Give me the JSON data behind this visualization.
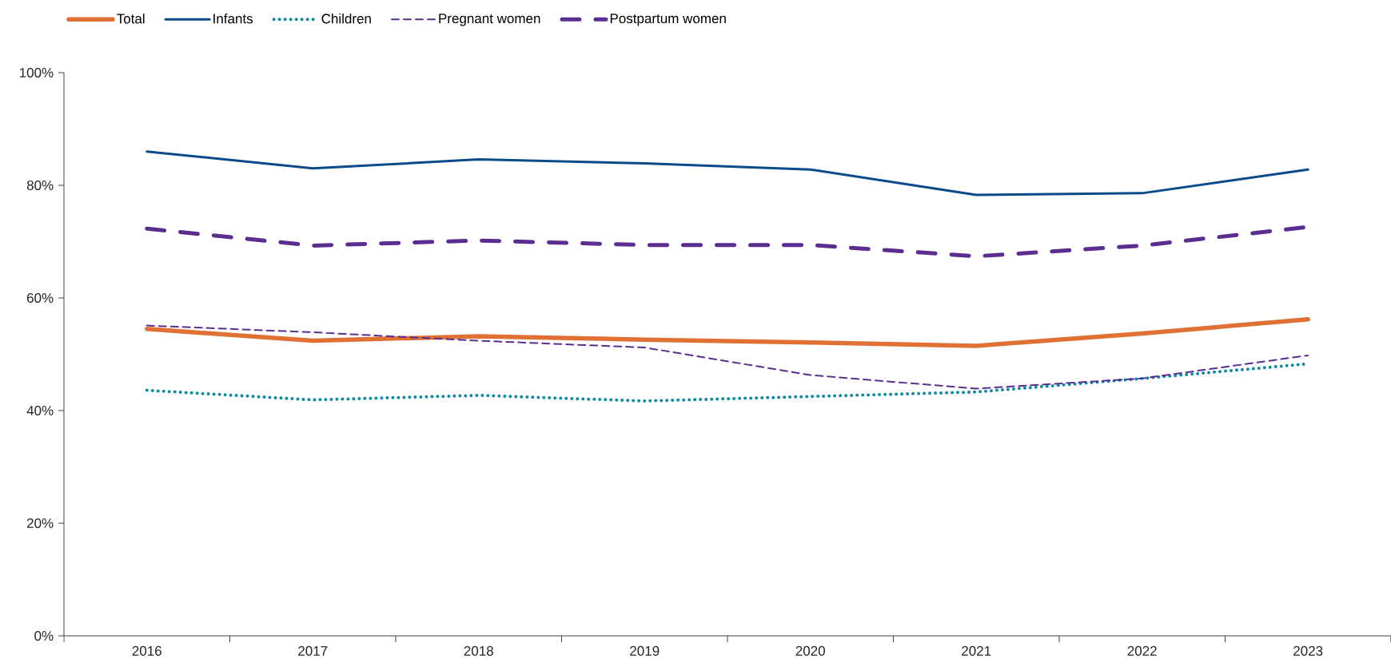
{
  "chart_data": {
    "type": "line",
    "categories": [
      "2016",
      "2017",
      "2018",
      "2019",
      "2020",
      "2021",
      "2022",
      "2023"
    ],
    "ylim": [
      0,
      100
    ],
    "yticks": [
      {
        "value": 0,
        "label": "0%"
      },
      {
        "value": 20,
        "label": "20%"
      },
      {
        "value": 40,
        "label": "40%"
      },
      {
        "value": 60,
        "label": "60%"
      },
      {
        "value": 80,
        "label": "80%"
      },
      {
        "value": 100,
        "label": "100%"
      }
    ],
    "legend": "top left",
    "series": [
      {
        "name": "Total",
        "color": "#e07034",
        "line_style": "solid",
        "values": [
          54.5,
          52.4,
          53.2,
          52.6,
          52.1,
          51.5,
          53.7,
          56.2
        ]
      },
      {
        "name": "Infants",
        "color": "#0b4a8a",
        "line_style": "solid",
        "values": [
          86.0,
          83.0,
          84.6,
          83.9,
          82.8,
          78.3,
          78.6,
          82.8
        ]
      },
      {
        "name": "Children",
        "color": "#0a89a5",
        "line_style": "dotted",
        "values": [
          43.6,
          41.9,
          42.7,
          41.7,
          42.5,
          43.3,
          45.7,
          48.3
        ]
      },
      {
        "name": "Pregnant women",
        "color": "#5b2d91",
        "line_style": "dashed",
        "values": [
          55.1,
          53.9,
          52.4,
          51.2,
          46.3,
          43.9,
          45.7,
          49.8
        ]
      },
      {
        "name": "Postpartum women",
        "color": "#5b2d91",
        "line_style": "dashdot",
        "values": [
          72.3,
          69.3,
          70.2,
          69.4,
          69.4,
          67.4,
          69.3,
          72.6
        ]
      }
    ]
  }
}
